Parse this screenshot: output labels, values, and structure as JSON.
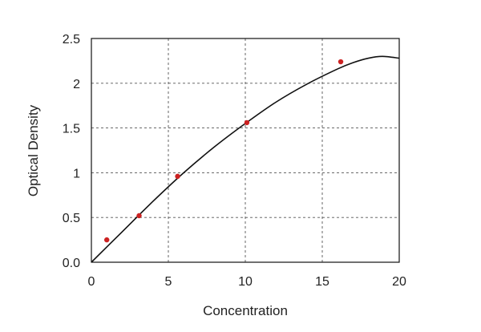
{
  "chart_data": {
    "type": "scatter",
    "title": "",
    "xlabel": "Concentration",
    "ylabel": "Optical Density",
    "xlim": [
      0,
      20
    ],
    "ylim": [
      0,
      2.5
    ],
    "x_ticks": [
      0,
      5,
      10,
      15,
      20
    ],
    "x_tick_labels": [
      "0",
      "5",
      "10",
      "15",
      "20"
    ],
    "y_ticks": [
      0,
      0.5,
      1,
      1.5,
      2,
      2.5
    ],
    "y_tick_labels": [
      "0.0",
      "0.5",
      "1",
      "1.5",
      "2",
      "2.5"
    ],
    "grid": "dashed",
    "legend": "none",
    "points": {
      "x": [
        1.0,
        3.1,
        5.6,
        10.1,
        16.2
      ],
      "y": [
        0.25,
        0.52,
        0.96,
        1.56,
        2.24
      ],
      "color": "#cc2222"
    },
    "fit_curve": {
      "x": [
        0,
        2,
        4,
        6,
        8,
        10,
        12,
        14,
        16,
        17,
        18,
        18.9,
        20
      ],
      "y": [
        0.0,
        0.34,
        0.68,
        1.0,
        1.29,
        1.55,
        1.79,
        1.99,
        2.16,
        2.23,
        2.28,
        2.3,
        2.28
      ],
      "color": "#111111"
    }
  }
}
